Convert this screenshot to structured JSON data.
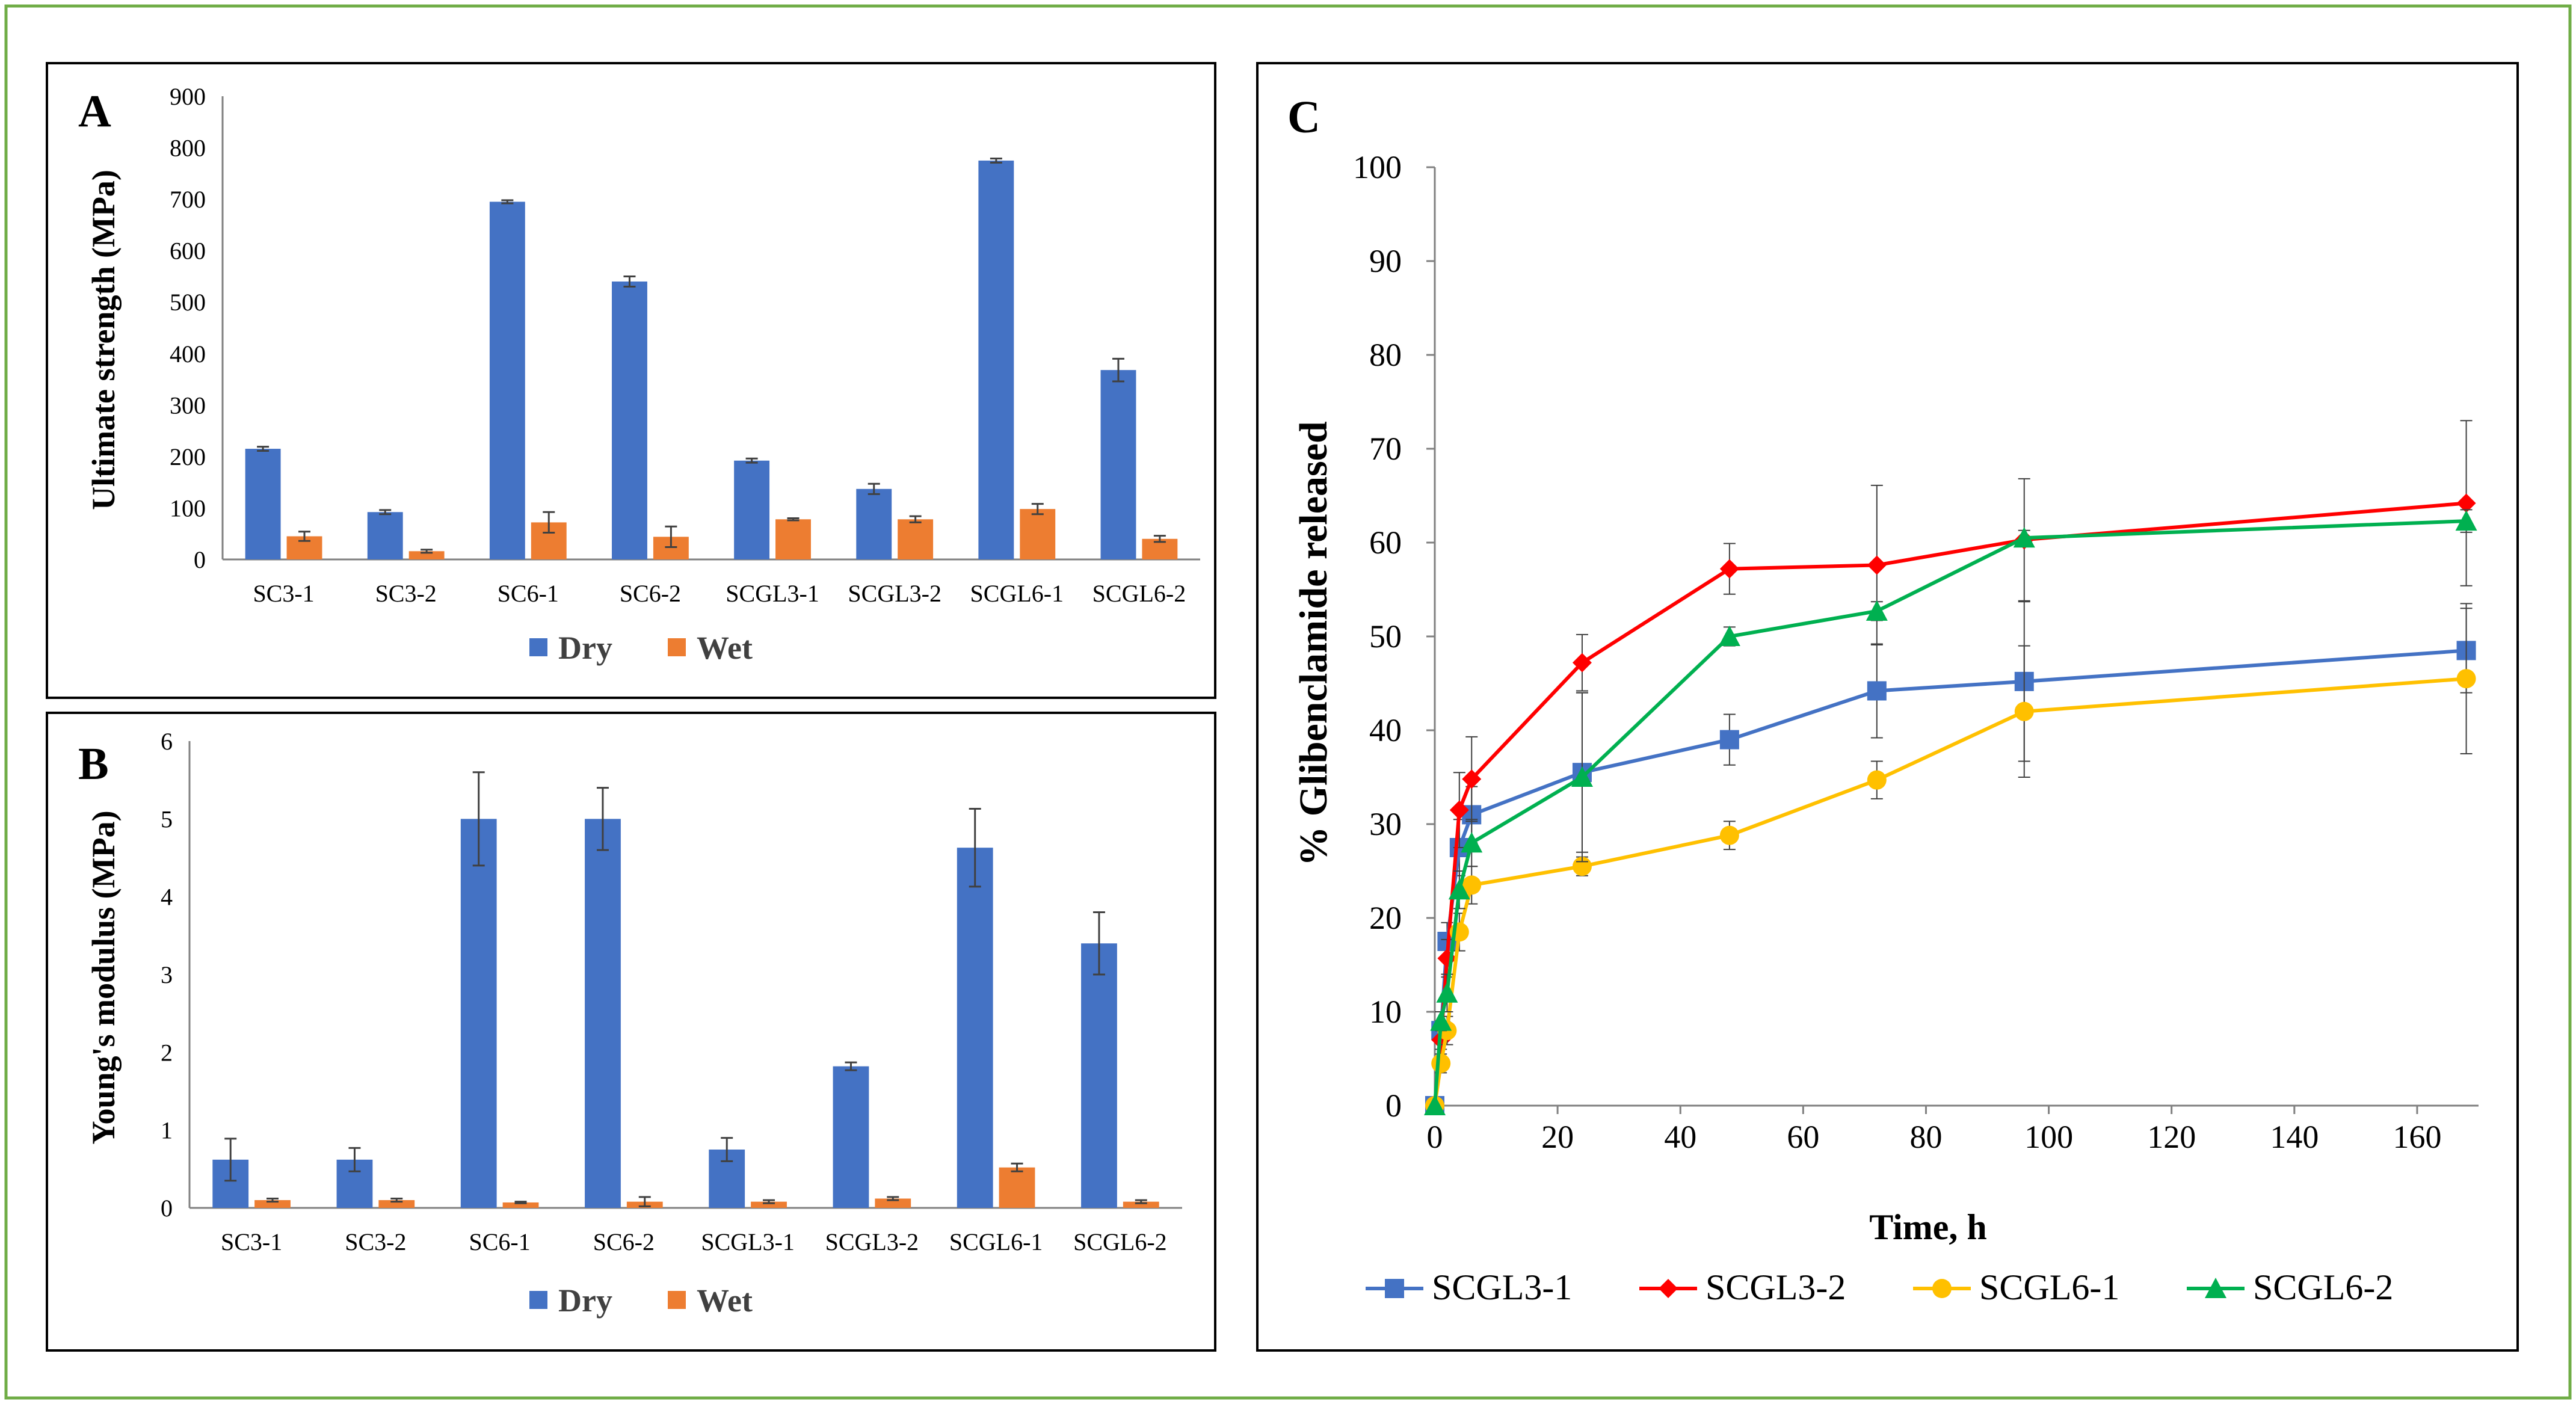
{
  "colors": {
    "frame": "#70ad47",
    "dry": "#4472c4",
    "wet": "#ed7d31",
    "axis": "#808080",
    "errbar": "#404040",
    "panel_border": "#000000"
  },
  "chart_data": [
    {
      "panel": "A",
      "type": "bar",
      "ylabel": "Ultimate strength (MPa)",
      "xlabel": "",
      "ylim": [
        0,
        900
      ],
      "yticks": [
        "0",
        "100",
        "200",
        "300",
        "400",
        "500",
        "600",
        "700",
        "800",
        "900"
      ],
      "grid": false,
      "legend_position": "bottom",
      "categories": [
        "SC3-1",
        "SC3-2",
        "SC6-1",
        "SC6-2",
        "SCGL3-1",
        "SCGL3-2",
        "SCGL6-1",
        "SCGL6-2"
      ],
      "series": [
        {
          "name": "Dry",
          "color": "#4472c4",
          "values": [
            215,
            92,
            695,
            540,
            192,
            137,
            775,
            368
          ],
          "errors": [
            4,
            4,
            3,
            10,
            4,
            10,
            4,
            22
          ]
        },
        {
          "name": "Wet",
          "color": "#ed7d31",
          "values": [
            45,
            16,
            72,
            44,
            78,
            78,
            98,
            40
          ],
          "errors": [
            9,
            3,
            20,
            20,
            2,
            6,
            10,
            6
          ]
        }
      ]
    },
    {
      "panel": "B",
      "type": "bar",
      "ylabel": "Young's modulus (MPa)",
      "xlabel": "",
      "ylim": [
        0,
        6
      ],
      "yticks": [
        "0",
        "1",
        "2",
        "3",
        "4",
        "5",
        "6"
      ],
      "grid": false,
      "legend_position": "bottom",
      "categories": [
        "SC3-1",
        "SC3-2",
        "SC6-1",
        "SC6-2",
        "SCGL3-1",
        "SCGL3-2",
        "SCGL6-1",
        "SCGL6-2"
      ],
      "series": [
        {
          "name": "Dry",
          "color": "#4472c4",
          "values": [
            0.62,
            0.62,
            5.0,
            5.0,
            0.75,
            1.82,
            4.63,
            3.4
          ],
          "errors": [
            0.27,
            0.15,
            0.6,
            0.4,
            0.15,
            0.05,
            0.5,
            0.4
          ]
        },
        {
          "name": "Wet",
          "color": "#ed7d31",
          "values": [
            0.1,
            0.1,
            0.07,
            0.08,
            0.08,
            0.12,
            0.52,
            0.08
          ],
          "errors": [
            0.02,
            0.02,
            0.01,
            0.06,
            0.02,
            0.02,
            0.05,
            0.02
          ]
        }
      ]
    },
    {
      "panel": "C",
      "type": "line",
      "xlabel": "Time, h",
      "ylabel": "% Glibenclamide  released",
      "xlim": [
        0,
        170
      ],
      "ylim": [
        0,
        100
      ],
      "xticks": [
        "0",
        "20",
        "40",
        "60",
        "80",
        "100",
        "120",
        "140",
        "160"
      ],
      "yticks": [
        "0",
        "10",
        "20",
        "30",
        "40",
        "50",
        "60",
        "70",
        "80",
        "90",
        "100"
      ],
      "grid": false,
      "legend_position": "bottom",
      "x": [
        0,
        1,
        2,
        4,
        6,
        24,
        48,
        72,
        96,
        168
      ],
      "series": [
        {
          "name": "SCGL3-1",
          "color": "#4472c4",
          "marker": "square",
          "values": [
            0,
            8,
            17.5,
            27.5,
            31,
            35.5,
            39,
            44.2,
            45.2,
            48.5
          ],
          "errors": [
            0,
            1,
            2,
            3,
            3,
            8.5,
            2.7,
            5,
            8.5,
            4.5
          ]
        },
        {
          "name": "SCGL3-2",
          "color": "#ff0000",
          "marker": "diamond",
          "values": [
            0,
            7,
            15.7,
            31.5,
            34.8,
            47.2,
            57.2,
            57.6,
            60.3,
            64.2
          ],
          "errors": [
            0,
            1,
            2,
            4,
            4.5,
            3,
            2.7,
            8.5,
            6.5,
            8.8
          ]
        },
        {
          "name": "SCGL6-1",
          "color": "#ffc000",
          "marker": "circle",
          "values": [
            0,
            4.5,
            8,
            18.5,
            23.5,
            25.5,
            28.8,
            34.7,
            42,
            45.5
          ],
          "errors": [
            0,
            1,
            1.5,
            2,
            2,
            1,
            1.5,
            2,
            7,
            8
          ]
        },
        {
          "name": "SCGL6-2",
          "color": "#00b050",
          "marker": "triangle",
          "values": [
            0,
            9,
            12,
            23,
            28,
            35,
            50,
            52.7,
            60.5,
            62.3
          ],
          "errors": [
            0,
            1,
            2,
            2,
            2.5,
            9,
            1,
            1,
            0.8,
            1.2
          ]
        }
      ]
    }
  ]
}
